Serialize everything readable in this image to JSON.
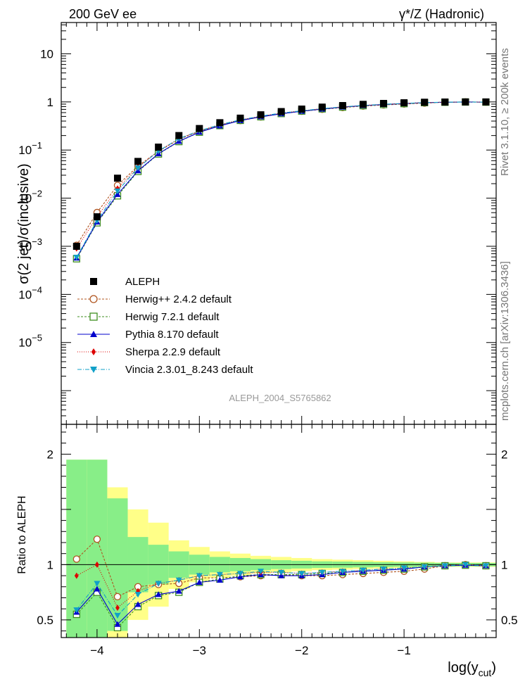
{
  "header": {
    "left": "200 GeV ee",
    "right": "γ*/Z (Hadronic)"
  },
  "side_labels": {
    "rivet": "Rivet 3.1.10,  ≥ 200k events",
    "mcplots": "mcplots.cern.ch [arXiv:1306.3436]"
  },
  "watermark": "ALEPH_2004_S5765862",
  "chart_data": {
    "type": "scatter",
    "xlabel": "log(y_cut)",
    "ylabel_top": "σ(2 jet)/σ(inclusive)",
    "ylabel_bottom": "Ratio to ALEPH",
    "xlim": [
      -4.35,
      -0.1
    ],
    "ylim_top_log10": [
      -6.7,
      1.65
    ],
    "ylim_bottom": [
      0.34,
      2.27
    ],
    "top_yscale": "log",
    "x_ticks": [
      -4,
      -3,
      -2,
      -1
    ],
    "y_ticks_top": [
      {
        "v": 10,
        "label": "10"
      },
      {
        "v": 1,
        "label": "1"
      },
      {
        "v": 0.1,
        "label": "10",
        "exp": "−1"
      },
      {
        "v": 0.01,
        "label": "10",
        "exp": "−2"
      },
      {
        "v": 0.001,
        "label": "10",
        "exp": "−3"
      },
      {
        "v": 0.0001,
        "label": "10",
        "exp": "−4"
      },
      {
        "v": 1e-05,
        "label": "10",
        "exp": "−5"
      }
    ],
    "y_ticks_bottom": [
      {
        "v": 0.5,
        "label": "0.5"
      },
      {
        "v": 1,
        "label": "1"
      },
      {
        "v": 2,
        "label": "2"
      }
    ],
    "x": [
      -4.2,
      -4.0,
      -3.8,
      -3.6,
      -3.4,
      -3.2,
      -3.0,
      -2.8,
      -2.6,
      -2.4,
      -2.2,
      -2.0,
      -1.8,
      -1.6,
      -1.4,
      -1.2,
      -1.0,
      -0.8,
      -0.6,
      -0.4,
      -0.2
    ],
    "data": {
      "name": "ALEPH",
      "color": "#000000",
      "values": [
        0.001,
        0.0041,
        0.026,
        0.058,
        0.115,
        0.2,
        0.28,
        0.37,
        0.46,
        0.54,
        0.63,
        0.71,
        0.78,
        0.84,
        0.89,
        0.93,
        0.96,
        0.985,
        0.995,
        1.0,
        1.0
      ]
    },
    "bands": {
      "yellow_half": [
        0.95,
        0.95,
        0.7,
        0.5,
        0.38,
        0.22,
        0.16,
        0.12,
        0.1,
        0.08,
        0.07,
        0.06,
        0.05,
        0.045,
        0.04,
        0.035,
        0.03,
        0.025,
        0.02,
        0.02,
        0.02
      ],
      "green_half": [
        0.95,
        0.95,
        0.6,
        0.25,
        0.18,
        0.12,
        0.09,
        0.07,
        0.06,
        0.05,
        0.04,
        0.035,
        0.03,
        0.028,
        0.025,
        0.022,
        0.02,
        0.018,
        0.016,
        0.015,
        0.015
      ]
    },
    "series": [
      {
        "name": "Herwig++ 2.4.2 default",
        "color": "#b0541f",
        "marker": "circle-open",
        "dash": "3,2",
        "ratio": [
          1.05,
          1.23,
          0.71,
          0.8,
          0.82,
          0.83,
          0.88,
          0.88,
          0.89,
          0.9,
          0.91,
          0.9,
          0.9,
          0.91,
          0.92,
          0.93,
          0.94,
          0.96,
          0.99,
          1.0,
          0.99
        ]
      },
      {
        "name": "Herwig 7.2.1 default",
        "color": "#3f8f1f",
        "marker": "square-open",
        "dash": "3,2",
        "ratio": [
          0.55,
          0.75,
          0.43,
          0.62,
          0.72,
          0.75,
          0.84,
          0.87,
          0.9,
          0.91,
          0.91,
          0.91,
          0.92,
          0.93,
          0.94,
          0.95,
          0.96,
          0.98,
          0.99,
          0.995,
          0.99
        ]
      },
      {
        "name": "Pythia 8.170 default",
        "color": "#0000cc",
        "marker": "triangle-up",
        "dash": "",
        "ratio": [
          0.57,
          0.78,
          0.46,
          0.64,
          0.73,
          0.76,
          0.84,
          0.86,
          0.89,
          0.91,
          0.9,
          0.9,
          0.91,
          0.93,
          0.94,
          0.95,
          0.96,
          0.98,
          0.99,
          0.995,
          0.99
        ]
      },
      {
        "name": "Sherpa 2.2.9 default",
        "color": "#dd0000",
        "marker": "diamond",
        "dash": "1,2",
        "ratio": [
          0.9,
          1.0,
          0.61,
          0.76,
          0.83,
          0.86,
          0.9,
          0.91,
          0.92,
          0.93,
          0.93,
          0.92,
          0.93,
          0.94,
          0.95,
          0.96,
          0.97,
          0.98,
          0.99,
          1.0,
          0.99
        ]
      },
      {
        "name": "Vincia 2.3.01_8.243 default",
        "color": "#10a0c8",
        "marker": "triangle-down",
        "dash": "6,2,1,2",
        "ratio": [
          0.59,
          0.83,
          0.54,
          0.73,
          0.83,
          0.86,
          0.9,
          0.91,
          0.92,
          0.94,
          0.93,
          0.92,
          0.93,
          0.94,
          0.95,
          0.96,
          0.97,
          0.98,
          0.99,
          1.0,
          0.99
        ]
      }
    ],
    "legend_position": "lower-left"
  }
}
